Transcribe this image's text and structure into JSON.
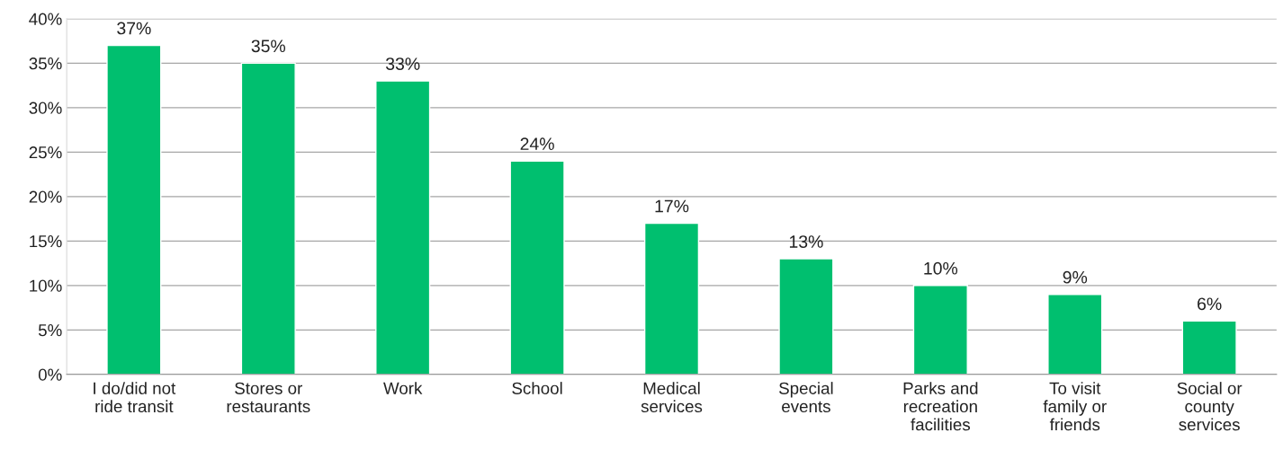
{
  "chart_data": {
    "type": "bar",
    "categories": [
      "I do/did not\nride transit",
      "Stores or\nrestaurants",
      "Work",
      "School",
      "Medical\nservices",
      "Special\nevents",
      "Parks and\nrecreation\nfacilities",
      "To visit\nfamily or\nfriends",
      "Social or\ncounty\nservices"
    ],
    "values": [
      37,
      35,
      33,
      24,
      17,
      13,
      10,
      9,
      6
    ],
    "value_labels": [
      "37%",
      "35%",
      "33%",
      "24%",
      "17%",
      "13%",
      "10%",
      "9%",
      "6%"
    ],
    "color": "#00bf6f",
    "ylim": [
      0,
      40
    ],
    "yticks": [
      {
        "value": 0,
        "label": "0%"
      },
      {
        "value": 5,
        "label": "5%"
      },
      {
        "value": 10,
        "label": "10%"
      },
      {
        "value": 15,
        "label": "15%"
      },
      {
        "value": 20,
        "label": "20%"
      },
      {
        "value": 25,
        "label": "25%"
      },
      {
        "value": 30,
        "label": "30%"
      },
      {
        "value": 35,
        "label": "35%"
      },
      {
        "value": 40,
        "label": "40%"
      }
    ],
    "grid": "y"
  }
}
